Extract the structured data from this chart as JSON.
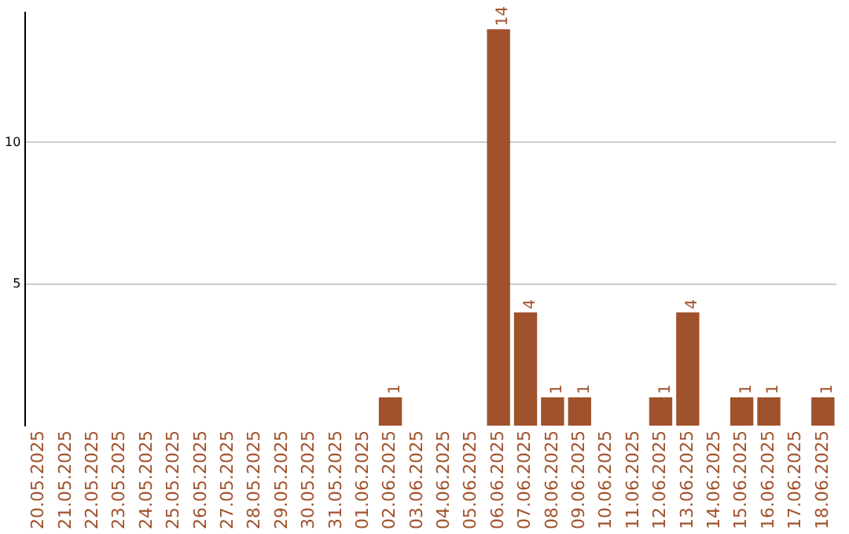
{
  "chart_data": {
    "type": "bar",
    "categories": [
      "20.05.2025",
      "21.05.2025",
      "22.05.2025",
      "23.05.2025",
      "24.05.2025",
      "25.05.2025",
      "26.05.2025",
      "27.05.2025",
      "28.05.2025",
      "29.05.2025",
      "30.05.2025",
      "31.05.2025",
      "01.06.2025",
      "02.06.2025",
      "03.06.2025",
      "04.06.2025",
      "05.06.2025",
      "06.06.2025",
      "07.06.2025",
      "08.06.2025",
      "09.06.2025",
      "10.06.2025",
      "11.06.2025",
      "12.06.2025",
      "13.06.2025",
      "14.06.2025",
      "15.06.2025",
      "16.06.2025",
      "17.06.2025",
      "18.06.2025"
    ],
    "values": [
      0,
      0,
      0,
      0,
      0,
      0,
      0,
      0,
      0,
      0,
      0,
      0,
      0,
      1,
      0,
      0,
      0,
      14,
      4,
      1,
      1,
      0,
      0,
      1,
      4,
      0,
      1,
      1,
      0,
      1
    ],
    "value_labels": [
      null,
      null,
      null,
      null,
      null,
      null,
      null,
      null,
      null,
      null,
      null,
      null,
      null,
      "1",
      null,
      null,
      null,
      "14",
      "4",
      "1",
      "1",
      null,
      null,
      "1",
      "4",
      null,
      "1",
      "1",
      null,
      "1"
    ],
    "color": "#a0522d",
    "ylim": [
      0,
      14.6
    ],
    "yticks": [
      5,
      10
    ],
    "grid": "y",
    "legend": false
  }
}
